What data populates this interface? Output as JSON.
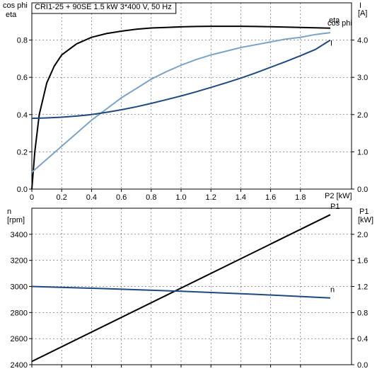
{
  "chart_data": [
    {
      "type": "line",
      "title": "CRI1-25 + 90SE   1.5 kW   3*400 V, 50 Hz",
      "xlabel": "P2 [kW]",
      "ylabel_left": [
        "cos phi",
        "eta"
      ],
      "ylabel_right": [
        "I",
        "[A]"
      ],
      "xlim": [
        0,
        2.0
      ],
      "xticks": [
        0,
        0.2,
        0.4,
        0.6,
        0.8,
        1.0,
        1.2,
        1.4,
        1.6,
        1.8
      ],
      "xtick_labels": [
        "0",
        "0.2",
        "0.4",
        "0.6",
        "0.8",
        "1.0",
        "1.2",
        "1.4",
        "1.6",
        "1.8"
      ],
      "ylim_left": [
        0,
        1.0
      ],
      "yticks_left": [
        0,
        0.2,
        0.4,
        0.6,
        0.8
      ],
      "ytick_labels_left": [
        "0.0",
        "0.2",
        "0.4",
        "0.6",
        "0.8"
      ],
      "ylim_right": [
        0,
        5.0
      ],
      "yticks_right": [
        0,
        1,
        2,
        3,
        4
      ],
      "ytick_labels_right": [
        "0.0",
        "1.0",
        "2.0",
        "3.0",
        "4.0"
      ],
      "grid": true,
      "series": [
        {
          "name": "eta",
          "axis": "left",
          "color": "#000000",
          "x": [
            0,
            0.02,
            0.05,
            0.1,
            0.15,
            0.2,
            0.3,
            0.4,
            0.5,
            0.6,
            0.7,
            0.8,
            0.9,
            1.0,
            1.1,
            1.2,
            1.3,
            1.4,
            1.5,
            1.6,
            1.7,
            1.8,
            1.9,
            2.0
          ],
          "values": [
            0,
            0.2,
            0.4,
            0.57,
            0.66,
            0.72,
            0.78,
            0.815,
            0.835,
            0.848,
            0.858,
            0.865,
            0.868,
            0.871,
            0.873,
            0.874,
            0.874,
            0.874,
            0.873,
            0.872,
            0.87,
            0.868,
            0.866,
            0.864
          ]
        },
        {
          "name": "cos phi",
          "axis": "left",
          "color": "#7ba3c8",
          "x": [
            0,
            0.1,
            0.2,
            0.3,
            0.4,
            0.5,
            0.6,
            0.7,
            0.8,
            0.9,
            1.0,
            1.1,
            1.2,
            1.3,
            1.4,
            1.5,
            1.6,
            1.7,
            1.8,
            1.9,
            2.0
          ],
          "values": [
            0.09,
            0.16,
            0.23,
            0.3,
            0.37,
            0.43,
            0.49,
            0.54,
            0.59,
            0.63,
            0.665,
            0.695,
            0.72,
            0.74,
            0.76,
            0.775,
            0.79,
            0.805,
            0.815,
            0.83,
            0.84
          ]
        },
        {
          "name": "I",
          "axis": "right",
          "color": "#1c4a80",
          "x": [
            0,
            0.1,
            0.2,
            0.3,
            0.4,
            0.5,
            0.6,
            0.7,
            0.8,
            0.9,
            1.0,
            1.1,
            1.2,
            1.3,
            1.4,
            1.5,
            1.6,
            1.7,
            1.8,
            1.9,
            2.0
          ],
          "values": [
            1.9,
            1.91,
            1.93,
            1.96,
            2.0,
            2.06,
            2.13,
            2.21,
            2.3,
            2.4,
            2.5,
            2.61,
            2.73,
            2.85,
            2.98,
            3.12,
            3.27,
            3.42,
            3.58,
            3.75,
            4.0
          ]
        }
      ]
    },
    {
      "type": "line",
      "ylabel_left": [
        "n",
        "[rpm]"
      ],
      "ylabel_right": [
        "P1",
        "[kW]"
      ],
      "xlim": [
        0,
        2.0
      ],
      "xticks": [
        0,
        0.2,
        0.4,
        0.6,
        0.8,
        1.0,
        1.2,
        1.4,
        1.6,
        1.8
      ],
      "ylim_left": [
        2400,
        3600
      ],
      "yticks_left": [
        2400,
        2600,
        2800,
        3000,
        3200,
        3400
      ],
      "ytick_labels_left": [
        "2400",
        "2600",
        "2800",
        "3000",
        "3200",
        "3400"
      ],
      "ylim_right": [
        0,
        2.4
      ],
      "yticks_right": [
        0,
        0.4,
        0.8,
        1.2,
        1.6,
        2.0
      ],
      "ytick_labels_right": [
        "0.0",
        "0.4",
        "0.8",
        "1.2",
        "1.6",
        "2.0"
      ],
      "grid": true,
      "series": [
        {
          "name": "P1",
          "axis": "right",
          "color": "#000000",
          "x": [
            0,
            2.0
          ],
          "values": [
            0.05,
            2.3
          ]
        },
        {
          "name": "n",
          "axis": "left",
          "color": "#1c4a80",
          "x": [
            0,
            0.5,
            1.0,
            1.5,
            2.0
          ],
          "values": [
            3000,
            2983,
            2963,
            2940,
            2912
          ]
        }
      ]
    }
  ]
}
